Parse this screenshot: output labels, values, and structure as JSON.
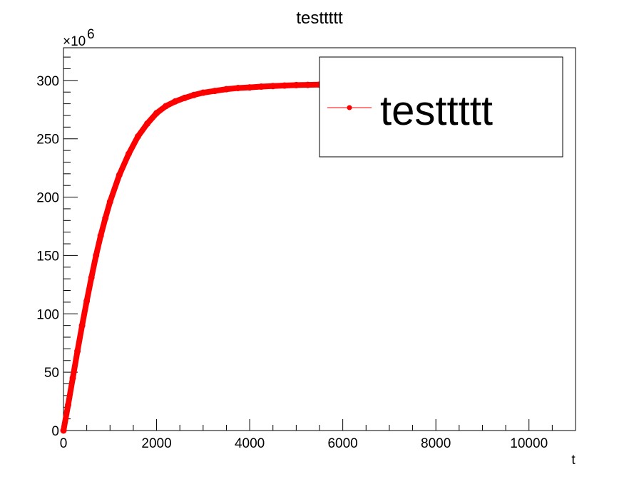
{
  "chart_data": {
    "type": "scatter",
    "title": "testtttt",
    "xlabel": "t",
    "ylabel": "",
    "y_exponent_label": "×10",
    "y_exponent_power": "6",
    "xlim": [
      0,
      11000
    ],
    "ylim": [
      0,
      328
    ],
    "x_ticks": [
      0,
      2000,
      4000,
      6000,
      8000,
      10000
    ],
    "y_ticks": [
      0,
      50,
      100,
      150,
      200,
      250,
      300
    ],
    "x_tick_labels": [
      "0",
      "2000",
      "4000",
      "6000",
      "8000",
      "10000"
    ],
    "y_tick_labels": [
      "0",
      "50",
      "100",
      "150",
      "200",
      "250",
      "300"
    ],
    "legend_placement": "top-right",
    "series": [
      {
        "name": "testtttt",
        "color": "#ff0000",
        "marker": "filled-circle",
        "x": [
          0,
          100,
          200,
          300,
          400,
          500,
          600,
          700,
          800,
          900,
          1000,
          1200,
          1400,
          1600,
          1800,
          2000,
          2200,
          2400,
          2600,
          2800,
          3000,
          3250,
          3500,
          3750,
          4000,
          4250,
          4500,
          4750,
          5000,
          5250,
          5500,
          5750
        ],
        "y": [
          0,
          22,
          45,
          68,
          90,
          111,
          131,
          150,
          167,
          182,
          196,
          219,
          237,
          252,
          263,
          272,
          278,
          282,
          285,
          287.5,
          289.5,
          291,
          292.5,
          293.5,
          294,
          294.7,
          295.2,
          295.6,
          296,
          296.2,
          296.4,
          296.5
        ]
      }
    ]
  }
}
